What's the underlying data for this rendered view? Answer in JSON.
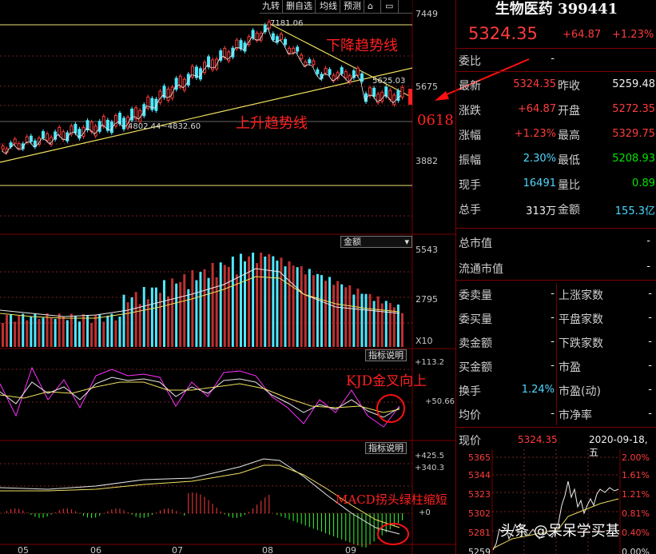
{
  "toolbar": {
    "buttons": [
      "九转",
      "删自选",
      "均线",
      "预测"
    ],
    "lock_icon": "lock-icon",
    "window_icon": "window-icon"
  },
  "main_chart": {
    "y_ticks": [
      "7449",
      "5675",
      "3882"
    ],
    "price_high_label": "7181.06",
    "price_mid_label": "5625.03",
    "price_low_label": "4802.44~4832.60",
    "annot_down": "下降趋势线",
    "annot_up": "上升趋势线",
    "annot_0618": "0618"
  },
  "volume": {
    "dropdown": "金额",
    "y_ticks": [
      "5543",
      "2795"
    ],
    "unit": "X10"
  },
  "kdj": {
    "button": "指标说明",
    "y_ticks": [
      "+113.2",
      "+50.66"
    ],
    "annot": "KJD金叉向上"
  },
  "macd": {
    "button": "指标说明",
    "y_ticks": [
      "+425.5",
      "+340.3",
      "+0"
    ],
    "annot": "MACD拐头绿柱缩短"
  },
  "x_axis": [
    "05",
    "06",
    "07",
    "08",
    "09"
  ],
  "quote": {
    "title": "生物医药 399441",
    "price": "5324.35",
    "change": "+64.87",
    "pct": "+1.23%",
    "weibi_label": "委比",
    "weibi_val": "-",
    "rows": [
      {
        "l1": "最新",
        "v1": "5324.35",
        "c1": "red",
        "l2": "昨收",
        "v2": "5259.48",
        "c2": "wht"
      },
      {
        "l1": "涨跌",
        "v1": "+64.87",
        "c1": "red",
        "l2": "开盘",
        "v2": "5272.35",
        "c2": "red"
      },
      {
        "l1": "涨幅",
        "v1": "+1.23%",
        "c1": "red",
        "l2": "最高",
        "v2": "5329.75",
        "c2": "red"
      },
      {
        "l1": "振幅",
        "v1": "2.30%",
        "c1": "cyan",
        "l2": "最低",
        "v2": "5208.93",
        "c2": "grn"
      },
      {
        "l1": "现手",
        "v1": "16491",
        "c1": "cyan",
        "l2": "量比",
        "v2": "0.89",
        "c2": "grn"
      },
      {
        "l1": "总手",
        "v1": "313万",
        "c1": "wht",
        "l2": "金额",
        "v2": "155.3亿",
        "c2": "cyan"
      }
    ],
    "cap_rows": [
      {
        "label": "总市值",
        "val": "-"
      },
      {
        "label": "流通市值",
        "val": "-"
      }
    ],
    "grid_rows": [
      {
        "l1": "委卖量",
        "v1": "-",
        "l2": "上涨家数",
        "v2": "-"
      },
      {
        "l1": "委买量",
        "v1": "-",
        "l2": "平盘家数",
        "v2": "-"
      },
      {
        "l1": "卖金额",
        "v1": "-",
        "l2": "下跌家数",
        "v2": "-"
      },
      {
        "l1": "买金额",
        "v1": "-",
        "l2": "市盈",
        "v2": "-"
      },
      {
        "l1": "换手",
        "v1": "1.24%",
        "l2": "市盈(动)",
        "v2": "-"
      },
      {
        "l1": "均价",
        "v1": "-",
        "l2": "市净率",
        "v2": "-"
      }
    ]
  },
  "intraday": {
    "label": "现价",
    "price": "5324.35",
    "date": "2020-09-18,五",
    "left_ticks": [
      "5365",
      "5344",
      "5323",
      "5302",
      "5281",
      "5259"
    ],
    "right_ticks": [
      "2.00%",
      "1.61%",
      "1.21%",
      "0.81%",
      "0.40%",
      "0.00%"
    ]
  },
  "watermark": "头条 @呆呆学买基"
}
